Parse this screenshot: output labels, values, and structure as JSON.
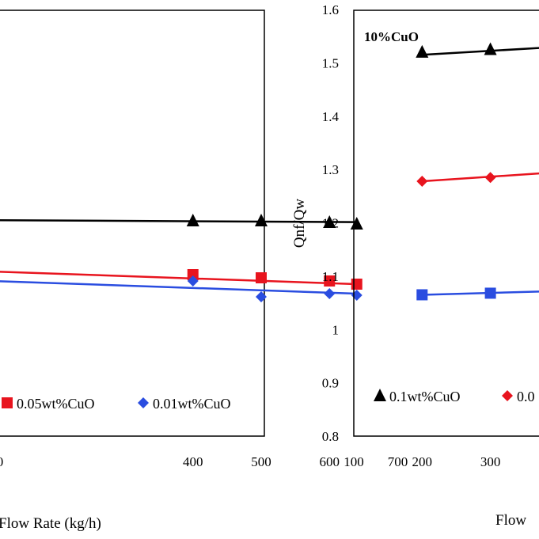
{
  "chart_data": [
    {
      "type": "scatter",
      "title": "",
      "xlabel": "Flow Rate (kg/h)",
      "ylabel": "",
      "xlim": [
        100,
        700
      ],
      "x_ticks_visible": [
        "0",
        "400",
        "500",
        "600",
        "700"
      ],
      "legend": [
        "0.05wt%CuO",
        "0.01wt%CuO"
      ],
      "legend_placement": "bottom",
      "series": [
        {
          "name": "",
          "marker": "triangle",
          "color": "#000000",
          "points": [
            [
              400,
              1.23
            ],
            [
              500,
              1.23
            ],
            [
              600,
              1.225
            ],
            [
              640,
              1.22
            ]
          ],
          "trend": [
            [
              100,
              1.232
            ],
            [
              640,
              1.226
            ]
          ]
        },
        {
          "name": "0.05wt%CuO",
          "marker": "square",
          "color": "#e8141e",
          "points": [
            [
              400,
              1.06
            ],
            [
              500,
              1.05
            ],
            [
              600,
              1.04
            ],
            [
              640,
              1.03
            ]
          ],
          "trend": [
            [
              100,
              1.07
            ],
            [
              640,
              1.03
            ]
          ]
        },
        {
          "name": "0.01wt%CuO",
          "marker": "diamond",
          "color": "#2a4de0",
          "points": [
            [
              400,
              1.04
            ],
            [
              500,
              0.99
            ],
            [
              600,
              1.0
            ],
            [
              640,
              0.995
            ]
          ],
          "trend": [
            [
              100,
              1.04
            ],
            [
              640,
              1.0
            ]
          ]
        }
      ]
    },
    {
      "type": "scatter",
      "title": "",
      "annotation": "10%CuO",
      "xlabel": "Flow",
      "ylabel": "Qnf/Qw",
      "xlim": [
        100,
        700
      ],
      "ylim": [
        0.8,
        1.6
      ],
      "x_ticks": [
        "100",
        "200",
        "300"
      ],
      "y_ticks": [
        "0.8",
        "0.9",
        "1",
        "1.1",
        "1.2",
        "1.3",
        "1.4",
        "1.5",
        "1.6"
      ],
      "legend": [
        "0.1wt%CuO",
        "0.0"
      ],
      "legend_placement": "bottom",
      "series": [
        {
          "name": "0.1wt%CuO",
          "marker": "triangle",
          "color": "#000000",
          "points": [
            [
              200,
              1.52
            ],
            [
              300,
              1.525
            ],
            [
              400,
              1.53
            ]
          ],
          "trend": [
            [
              200,
              1.515
            ],
            [
              400,
              1.53
            ]
          ]
        },
        {
          "name": "0.0",
          "marker": "diamond",
          "color": "#e8141e",
          "points": [
            [
              200,
              1.278
            ],
            [
              300,
              1.285
            ],
            [
              400,
              1.29
            ]
          ],
          "trend": [
            [
              200,
              1.278
            ],
            [
              400,
              1.295
            ]
          ]
        },
        {
          "name": "",
          "marker": "square",
          "color": "#2a4de0",
          "points": [
            [
              200,
              1.065
            ],
            [
              300,
              1.068
            ],
            [
              400,
              1.07
            ]
          ],
          "trend": [
            [
              200,
              1.065
            ],
            [
              400,
              1.072
            ]
          ]
        }
      ]
    }
  ]
}
